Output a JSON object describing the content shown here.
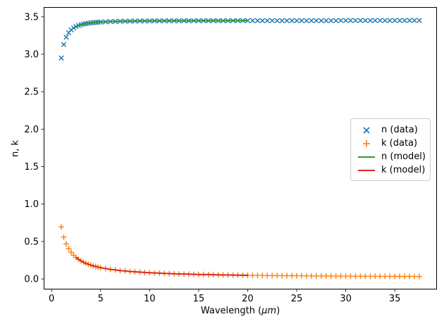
{
  "figure": {
    "background": "#ffffff",
    "xlabel": {
      "pre": "Wavelength (",
      "italic": "μm",
      "post": ")"
    },
    "ylabel": "n, k"
  },
  "legend": {
    "items": [
      {
        "label": "n (data)",
        "type": "marker-x",
        "color": "#1f77b4"
      },
      {
        "label": "k (data)",
        "type": "marker-plus",
        "color": "#ff7f0e"
      },
      {
        "label": "n (model)",
        "type": "line",
        "color": "#2ca02c"
      },
      {
        "label": "k (model)",
        "type": "line",
        "color": "#d62728"
      }
    ]
  },
  "chart_data": {
    "type": "scatter",
    "title": "",
    "xlabel": "Wavelength (μm)",
    "ylabel": "n, k",
    "xlim": [
      -0.8,
      39.3
    ],
    "ylim": [
      -0.14,
      3.63
    ],
    "x_ticks": [
      0,
      5,
      10,
      15,
      20,
      25,
      30,
      35
    ],
    "y_ticks": [
      0.0,
      0.5,
      1.0,
      1.5,
      2.0,
      2.5,
      3.0,
      3.5
    ],
    "grid": false,
    "legend_position": "center right",
    "x": [
      1,
      1.25,
      1.5,
      1.75,
      2,
      2.25,
      2.5,
      2.75,
      3,
      3.25,
      3.5,
      3.75,
      4,
      4.25,
      4.5,
      4.75,
      5,
      5.5,
      6,
      6.5,
      7,
      7.5,
      8,
      8.5,
      9,
      9.5,
      10,
      10.5,
      11,
      11.5,
      12,
      12.5,
      13,
      13.5,
      14,
      14.5,
      15,
      15.5,
      16,
      16.5,
      17,
      17.5,
      18,
      18.5,
      19,
      19.5,
      20,
      20.5,
      21,
      21.5,
      22,
      22.5,
      23,
      23.5,
      24,
      24.5,
      25,
      25.5,
      26,
      26.5,
      27,
      27.5,
      28,
      28.5,
      29,
      29.5,
      30,
      30.5,
      31,
      31.5,
      32,
      32.5,
      33,
      33.5,
      34,
      34.5,
      35,
      35.5,
      36,
      36.5,
      37,
      37.5
    ],
    "series": [
      {
        "name": "n (data)",
        "style": "scatter",
        "marker": "x",
        "color": "#1f77b4",
        "y": [
          2.95,
          3.13,
          3.228,
          3.287,
          3.325,
          3.351,
          3.37,
          3.384,
          3.394,
          3.403,
          3.409,
          3.414,
          3.419,
          3.422,
          3.425,
          3.428,
          3.43,
          3.433,
          3.436,
          3.438,
          3.44,
          3.441,
          3.442,
          3.443,
          3.444,
          3.444,
          3.445,
          3.445,
          3.446,
          3.446,
          3.447,
          3.447,
          3.447,
          3.447,
          3.447,
          3.448,
          3.448,
          3.448,
          3.448,
          3.448,
          3.448,
          3.448,
          3.448,
          3.449,
          3.449,
          3.449,
          3.449,
          3.449,
          3.449,
          3.449,
          3.449,
          3.449,
          3.449,
          3.449,
          3.449,
          3.449,
          3.449,
          3.449,
          3.449,
          3.449,
          3.449,
          3.449,
          3.449,
          3.449,
          3.449,
          3.45,
          3.45,
          3.45,
          3.45,
          3.45,
          3.45,
          3.45,
          3.45,
          3.45,
          3.45,
          3.45,
          3.45,
          3.45,
          3.45,
          3.45,
          3.45,
          3.45
        ]
      },
      {
        "name": "k (data)",
        "style": "scatter",
        "marker": "+",
        "color": "#ff7f0e",
        "y": [
          0.695,
          0.559,
          0.468,
          0.404,
          0.355,
          0.317,
          0.287,
          0.262,
          0.242,
          0.224,
          0.209,
          0.196,
          0.185,
          0.175,
          0.166,
          0.158,
          0.151,
          0.139,
          0.128,
          0.12,
          0.112,
          0.106,
          0.1,
          0.095,
          0.091,
          0.087,
          0.083,
          0.08,
          0.077,
          0.074,
          0.072,
          0.069,
          0.067,
          0.065,
          0.064,
          0.062,
          0.06,
          0.059,
          0.058,
          0.056,
          0.055,
          0.054,
          0.053,
          0.052,
          0.051,
          0.05,
          0.049,
          0.048,
          0.047,
          0.047,
          0.046,
          0.045,
          0.045,
          0.044,
          0.043,
          0.043,
          0.042,
          0.042,
          0.041,
          0.041,
          0.04,
          0.04,
          0.039,
          0.039,
          0.038,
          0.038,
          0.038,
          0.037,
          0.037,
          0.037,
          0.036,
          0.036,
          0.036,
          0.035,
          0.035,
          0.035,
          0.034,
          0.034,
          0.034,
          0.034,
          0.033,
          0.033
        ]
      },
      {
        "name": "n (model)",
        "style": "line",
        "color": "#2ca02c",
        "x": [
          2.5,
          3,
          3.5,
          4,
          4.5,
          5,
          6,
          7,
          8,
          9,
          10,
          12,
          14,
          16,
          18,
          20
        ],
        "y": [
          3.37,
          3.394,
          3.409,
          3.419,
          3.425,
          3.43,
          3.436,
          3.44,
          3.442,
          3.444,
          3.445,
          3.447,
          3.447,
          3.448,
          3.448,
          3.449
        ]
      },
      {
        "name": "k (model)",
        "style": "line",
        "color": "#d62728",
        "x": [
          2.5,
          3,
          3.5,
          4,
          4.5,
          5,
          5.5,
          6,
          6.5,
          7,
          7.5,
          8,
          9,
          10,
          11,
          12,
          13,
          14,
          15,
          16,
          17,
          18,
          19,
          20
        ],
        "y": [
          0.287,
          0.242,
          0.209,
          0.185,
          0.166,
          0.151,
          0.139,
          0.128,
          0.12,
          0.112,
          0.106,
          0.1,
          0.091,
          0.083,
          0.077,
          0.072,
          0.067,
          0.064,
          0.06,
          0.058,
          0.055,
          0.053,
          0.051,
          0.049
        ]
      }
    ]
  }
}
